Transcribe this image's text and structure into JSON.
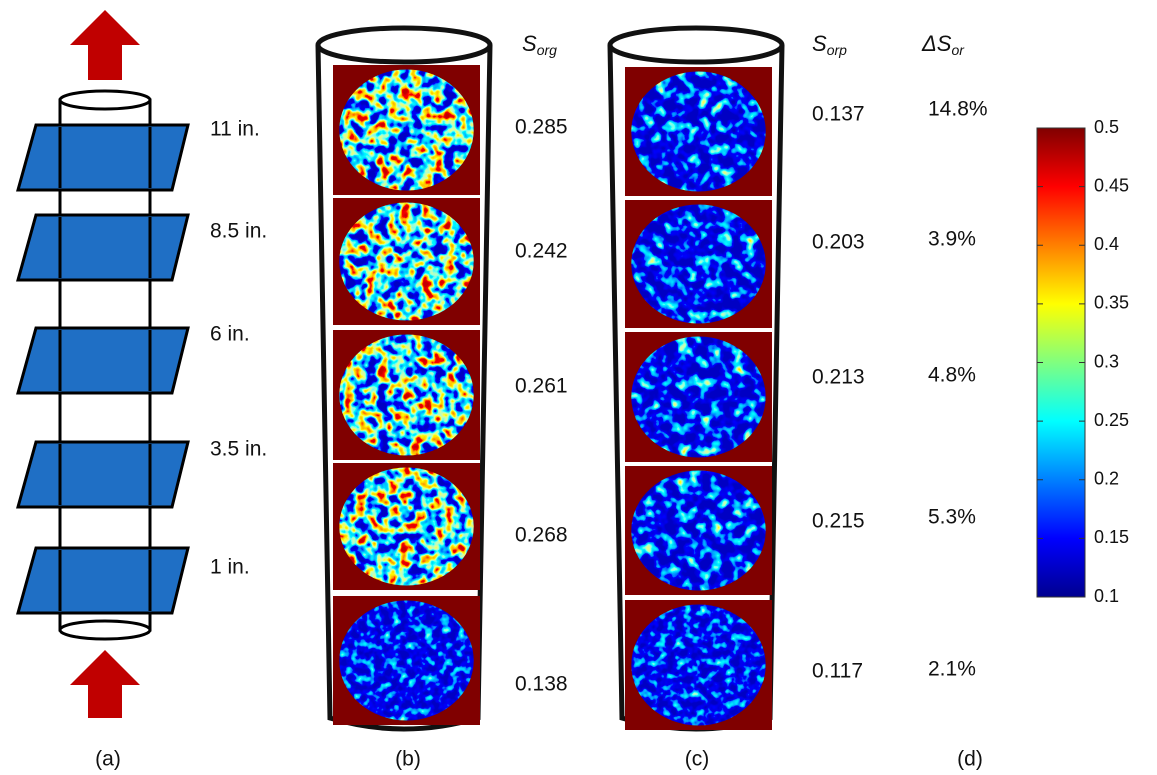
{
  "panel_a": {
    "label": "(a)",
    "heights": [
      "11 in.",
      "8.5 in.",
      "6 in.",
      "3.5 in.",
      "1 in."
    ]
  },
  "panel_b": {
    "label": "(b)",
    "header": {
      "symbol": "S",
      "subscript": "org"
    },
    "values": [
      0.285,
      0.242,
      0.261,
      0.268,
      0.138
    ]
  },
  "panel_c": {
    "label": "(c)",
    "header": {
      "symbol": "S",
      "subscript": "orp"
    },
    "values": [
      0.137,
      0.203,
      0.213,
      0.215,
      0.117
    ]
  },
  "panel_d": {
    "label": "(d)",
    "header": {
      "symbol": "ΔS",
      "subscript": "or"
    },
    "values": [
      "14.8%",
      "3.9%",
      "4.8%",
      "5.3%",
      "2.1%"
    ]
  },
  "colorbar": {
    "ticks": [
      0.5,
      0.45,
      0.4,
      0.35,
      0.3,
      0.25,
      0.2,
      0.15,
      0.1
    ]
  }
}
